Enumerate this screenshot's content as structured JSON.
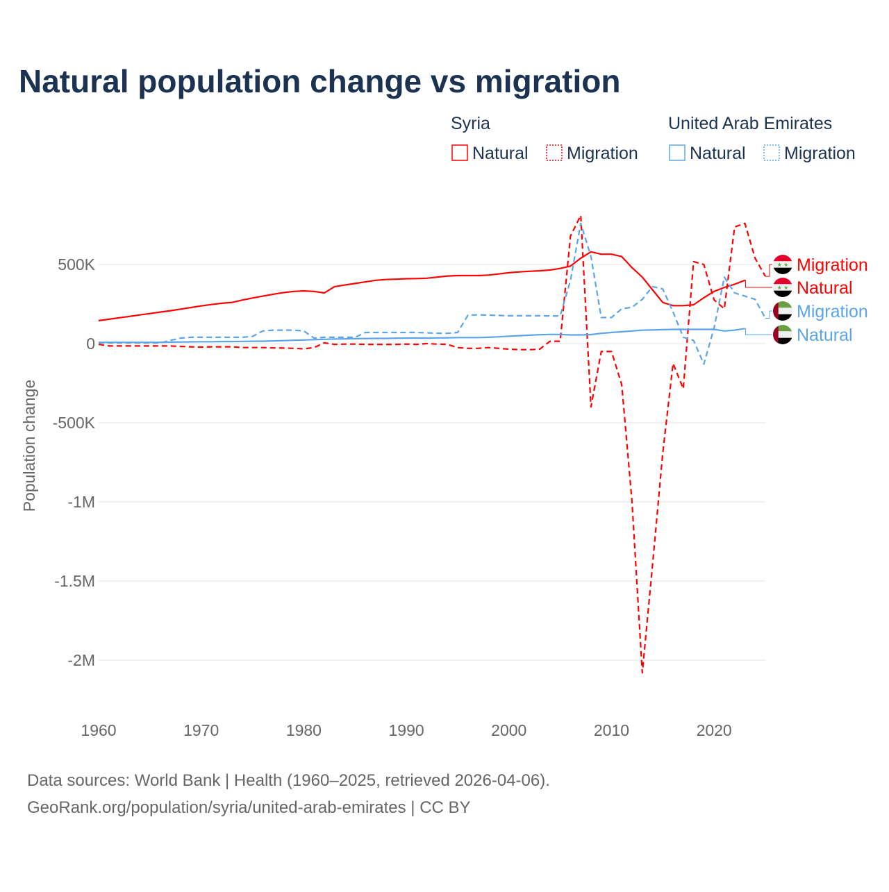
{
  "chart_data": {
    "type": "line",
    "title": "Natural population change vs migration",
    "ylabel": "Population change",
    "xlabel": "",
    "xlim": [
      1960,
      2025
    ],
    "ylim": [
      -2100000,
      820000
    ],
    "x_ticks": [
      1960,
      1970,
      1980,
      1990,
      2000,
      2010,
      2020
    ],
    "x_tick_labels": [
      "1960",
      "1970",
      "1980",
      "1990",
      "2000",
      "2010",
      "2020"
    ],
    "y_ticks": [
      500000,
      0,
      -500000,
      -1000000,
      -1500000,
      -2000000
    ],
    "y_tick_labels": [
      "500K",
      "0",
      "-500K",
      "-1M",
      "-1.5M",
      "-2M"
    ],
    "grid": true,
    "legend": {
      "placement": "top-right",
      "groups": [
        {
          "country": "Syria",
          "items": [
            "Natural",
            "Migration"
          ]
        },
        {
          "country": "United Arab Emirates",
          "items": [
            "Natural",
            "Migration"
          ]
        }
      ]
    },
    "end_labels": [
      {
        "text": "Migration",
        "series": 1
      },
      {
        "text": "Natural",
        "series": 0
      },
      {
        "text": "Migration",
        "series": 3
      },
      {
        "text": "Natural",
        "series": 2
      }
    ],
    "series": [
      {
        "name": "Syria Natural",
        "country": "Syria",
        "kind": "Natural",
        "color": "#ff0000",
        "dashed": false,
        "start_year": 1960,
        "values_k": [
          145,
          154,
          163,
          172,
          181,
          190,
          199,
          208,
          218,
          228,
          238,
          247,
          255,
          260,
          275,
          288,
          300,
          312,
          322,
          330,
          333,
          330,
          320,
          360,
          370,
          380,
          390,
          400,
          405,
          407,
          410,
          411,
          413,
          420,
          427,
          430,
          430,
          430,
          433,
          440,
          448,
          453,
          457,
          460,
          465,
          475,
          490,
          540,
          580,
          565,
          565,
          550,
          480,
          420,
          340,
          260,
          240,
          240,
          245,
          290,
          330,
          355,
          375,
          400
        ]
      },
      {
        "name": "Syria Migration",
        "country": "Syria",
        "kind": "Migration",
        "color": "#ff0000",
        "dashed": true,
        "start_year": 1960,
        "values_k": [
          -5,
          -15,
          -15,
          -15,
          -15,
          -15,
          -15,
          -15,
          -18,
          -20,
          -22,
          -20,
          -20,
          -20,
          -25,
          -25,
          -25,
          -27,
          -28,
          -30,
          -33,
          -25,
          5,
          -5,
          -3,
          -3,
          -5,
          -5,
          -5,
          -5,
          -3,
          -5,
          0,
          -3,
          -5,
          -25,
          -30,
          -30,
          -25,
          -30,
          -35,
          -38,
          -38,
          -35,
          15,
          15,
          680,
          810,
          -400,
          -50,
          -50,
          -260,
          -1000,
          -2080,
          -1400,
          -690,
          -125,
          -285,
          518,
          500,
          276,
          220,
          737,
          760,
          540,
          425
        ]
      },
      {
        "name": "UAE Natural",
        "country": "United Arab Emirates",
        "kind": "Natural",
        "color": "#5aa5ea",
        "dashed": false,
        "start_year": 1960,
        "values_k": [
          8,
          8,
          8,
          8,
          8,
          8,
          8,
          9,
          10,
          11,
          12,
          12,
          13,
          13,
          14,
          15,
          15,
          17,
          19,
          21,
          23,
          25,
          27,
          29,
          30,
          31,
          32,
          33,
          33,
          34,
          35,
          35,
          35,
          36,
          37,
          38,
          38,
          38,
          40,
          43,
          47,
          50,
          53,
          56,
          58,
          58,
          55,
          55,
          57,
          65,
          70,
          75,
          80,
          85,
          86,
          88,
          90,
          90,
          90,
          90,
          90,
          80,
          85,
          95
        ]
      },
      {
        "name": "UAE Migration",
        "country": "United Arab Emirates",
        "kind": "Migration",
        "color": "#5aa5ea",
        "dashed": true,
        "start_year": 1960,
        "values_k": [
          5,
          5,
          5,
          5,
          5,
          5,
          5,
          20,
          35,
          40,
          40,
          40,
          40,
          40,
          40,
          45,
          80,
          85,
          85,
          85,
          80,
          35,
          40,
          40,
          40,
          40,
          70,
          70,
          70,
          70,
          70,
          70,
          68,
          66,
          65,
          70,
          180,
          182,
          180,
          178,
          176,
          176,
          176,
          176,
          175,
          175,
          400,
          760,
          550,
          165,
          165,
          220,
          230,
          280,
          360,
          345,
          200,
          40,
          20,
          -130,
          100,
          420,
          320,
          300,
          280,
          160
        ]
      }
    ]
  },
  "footer": {
    "line1": "Data sources: World Bank | Health (1960–2025, retrieved 2026-04-06).",
    "line2": "GeoRank.org/population/syria/united-arab-emirates | CC BY"
  },
  "colors": {
    "syria": "#ff0000",
    "uae": "#5aa5ea",
    "title": "#1b3351",
    "text": "#666666",
    "grid": "#e6e6e6"
  }
}
